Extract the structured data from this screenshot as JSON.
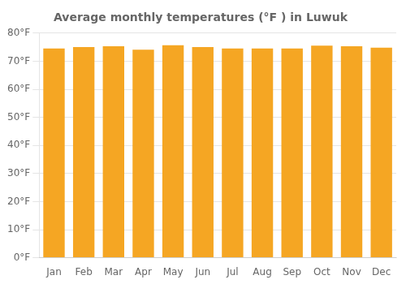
{
  "chart_data": {
    "type": "bar",
    "title": "Average monthly temperatures (°F ) in Luwuk",
    "categories": [
      "Jan",
      "Feb",
      "Mar",
      "Apr",
      "May",
      "Jun",
      "Jul",
      "Aug",
      "Sep",
      "Oct",
      "Nov",
      "Dec"
    ],
    "values": [
      74.5,
      75.0,
      75.3,
      74.1,
      75.7,
      75.0,
      74.5,
      74.5,
      74.5,
      75.5,
      75.3,
      74.8
    ],
    "color": "#F5A623",
    "ylim": [
      0,
      80
    ],
    "yticks": [
      {
        "value": 0,
        "label": "0°F"
      },
      {
        "value": 10,
        "label": "10°F"
      },
      {
        "value": 20,
        "label": "20°F"
      },
      {
        "value": 30,
        "label": "30°F"
      },
      {
        "value": 40,
        "label": "40°F"
      },
      {
        "value": 50,
        "label": "50°F"
      },
      {
        "value": 60,
        "label": "60°F"
      },
      {
        "value": 70,
        "label": "70°F"
      },
      {
        "value": 80,
        "label": "80°F"
      }
    ],
    "grid": true
  }
}
